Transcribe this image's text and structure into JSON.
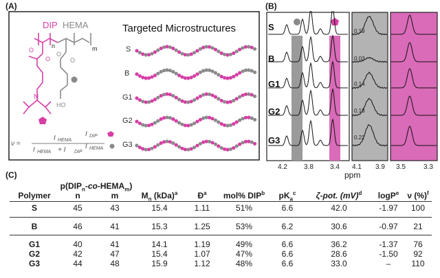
{
  "panelA": {
    "label": "(A)",
    "monomer_dip": "DIP",
    "monomer_hema": "HEMA",
    "sub_n": "n",
    "sub_m": "m",
    "title": "Targeted Microstructures",
    "rows": [
      "S",
      "B",
      "G1",
      "G2",
      "G3"
    ],
    "atom_O": "O",
    "atom_N": "N",
    "atom_HO": "HO",
    "legend_dip": "I",
    "legend_dip_sub": "DIP",
    "legend_hema": "I",
    "legend_hema_sub": "HEMA",
    "equation_prefix": "ν =",
    "eq_num": "I",
    "eq_num_sub": "HEMA",
    "eq_den": "I",
    "eq_den_sub1": "HEMA",
    "eq_den_plus": "+ I",
    "eq_den_sub2": "DIP",
    "colors": {
      "dip": "#d63fa5",
      "hema": "#8a8a8a",
      "box": "#222222"
    }
  },
  "panelB": {
    "label": "(B)",
    "rows": [
      "S",
      "B",
      "G1",
      "G2",
      "G3"
    ],
    "values": [
      "0.19",
      "0.03",
      "0.14",
      "0.18",
      "0.22"
    ],
    "ticks_main": [
      "4.2",
      "3.8",
      "3.4"
    ],
    "ticks_zoom1": [
      "4.1",
      "3.9"
    ],
    "ticks_zoom2": [
      "3.5",
      "3.3"
    ],
    "xlabel": "ppm",
    "colors": {
      "grey_band": "#9a9a9a",
      "pink_band": "#d96bb8"
    }
  },
  "panelC": {
    "label": "(C)",
    "headers": {
      "polymer": "Polymer",
      "comp_line1": "p(DIP",
      "comp_sub_n": "n",
      "comp_co": "-co-",
      "comp_hema": "HEMA",
      "comp_sub_m": "m",
      "comp_close": ")",
      "n": "n",
      "m": "m",
      "mn": "M",
      "mn_sub": "n",
      "mn_unit": " (kDa)",
      "mn_sup": "a",
      "d": "Đ",
      "d_sup": "a",
      "mol": "mol% DIP",
      "mol_sup": "b",
      "pka": "pK",
      "pka_sub": "a",
      "pka_sup": "c",
      "zeta": "ζ-pot. (mV)",
      "zeta_sup": "d",
      "logp": "logP",
      "logp_sup": "e",
      "nu": "ν (%)",
      "nu_sup": "f"
    },
    "rows": [
      {
        "polymer": "S",
        "n": "45",
        "m": "43",
        "mn": "15.4",
        "d": "1.11",
        "mol": "51%",
        "pka": "6.6",
        "zeta": "42.0",
        "logp": "-1.97",
        "nu": "100"
      },
      {
        "polymer": "B",
        "n": "46",
        "m": "41",
        "mn": "15.3",
        "d": "1.25",
        "mol": "53%",
        "pka": "6.2",
        "zeta": "30.6",
        "logp": "-0.97",
        "nu": "21"
      },
      {
        "polymer": "G1",
        "n": "40",
        "m": "41",
        "mn": "14.1",
        "d": "1.19",
        "mol": "49%",
        "pka": "6.6",
        "zeta": "36.2",
        "logp": "-1.37",
        "nu": "76"
      },
      {
        "polymer": "G2",
        "n": "42",
        "m": "47",
        "mn": "15.4",
        "d": "1.07",
        "mol": "47%",
        "pka": "6.6",
        "zeta": "28.6",
        "logp": "-1.50",
        "nu": "92"
      },
      {
        "polymer": "G3",
        "n": "44",
        "m": "48",
        "mn": "15.9",
        "d": "1.12",
        "mol": "48%",
        "pka": "6.6",
        "zeta": "33.0",
        "logp": "–",
        "nu": "110"
      }
    ]
  }
}
